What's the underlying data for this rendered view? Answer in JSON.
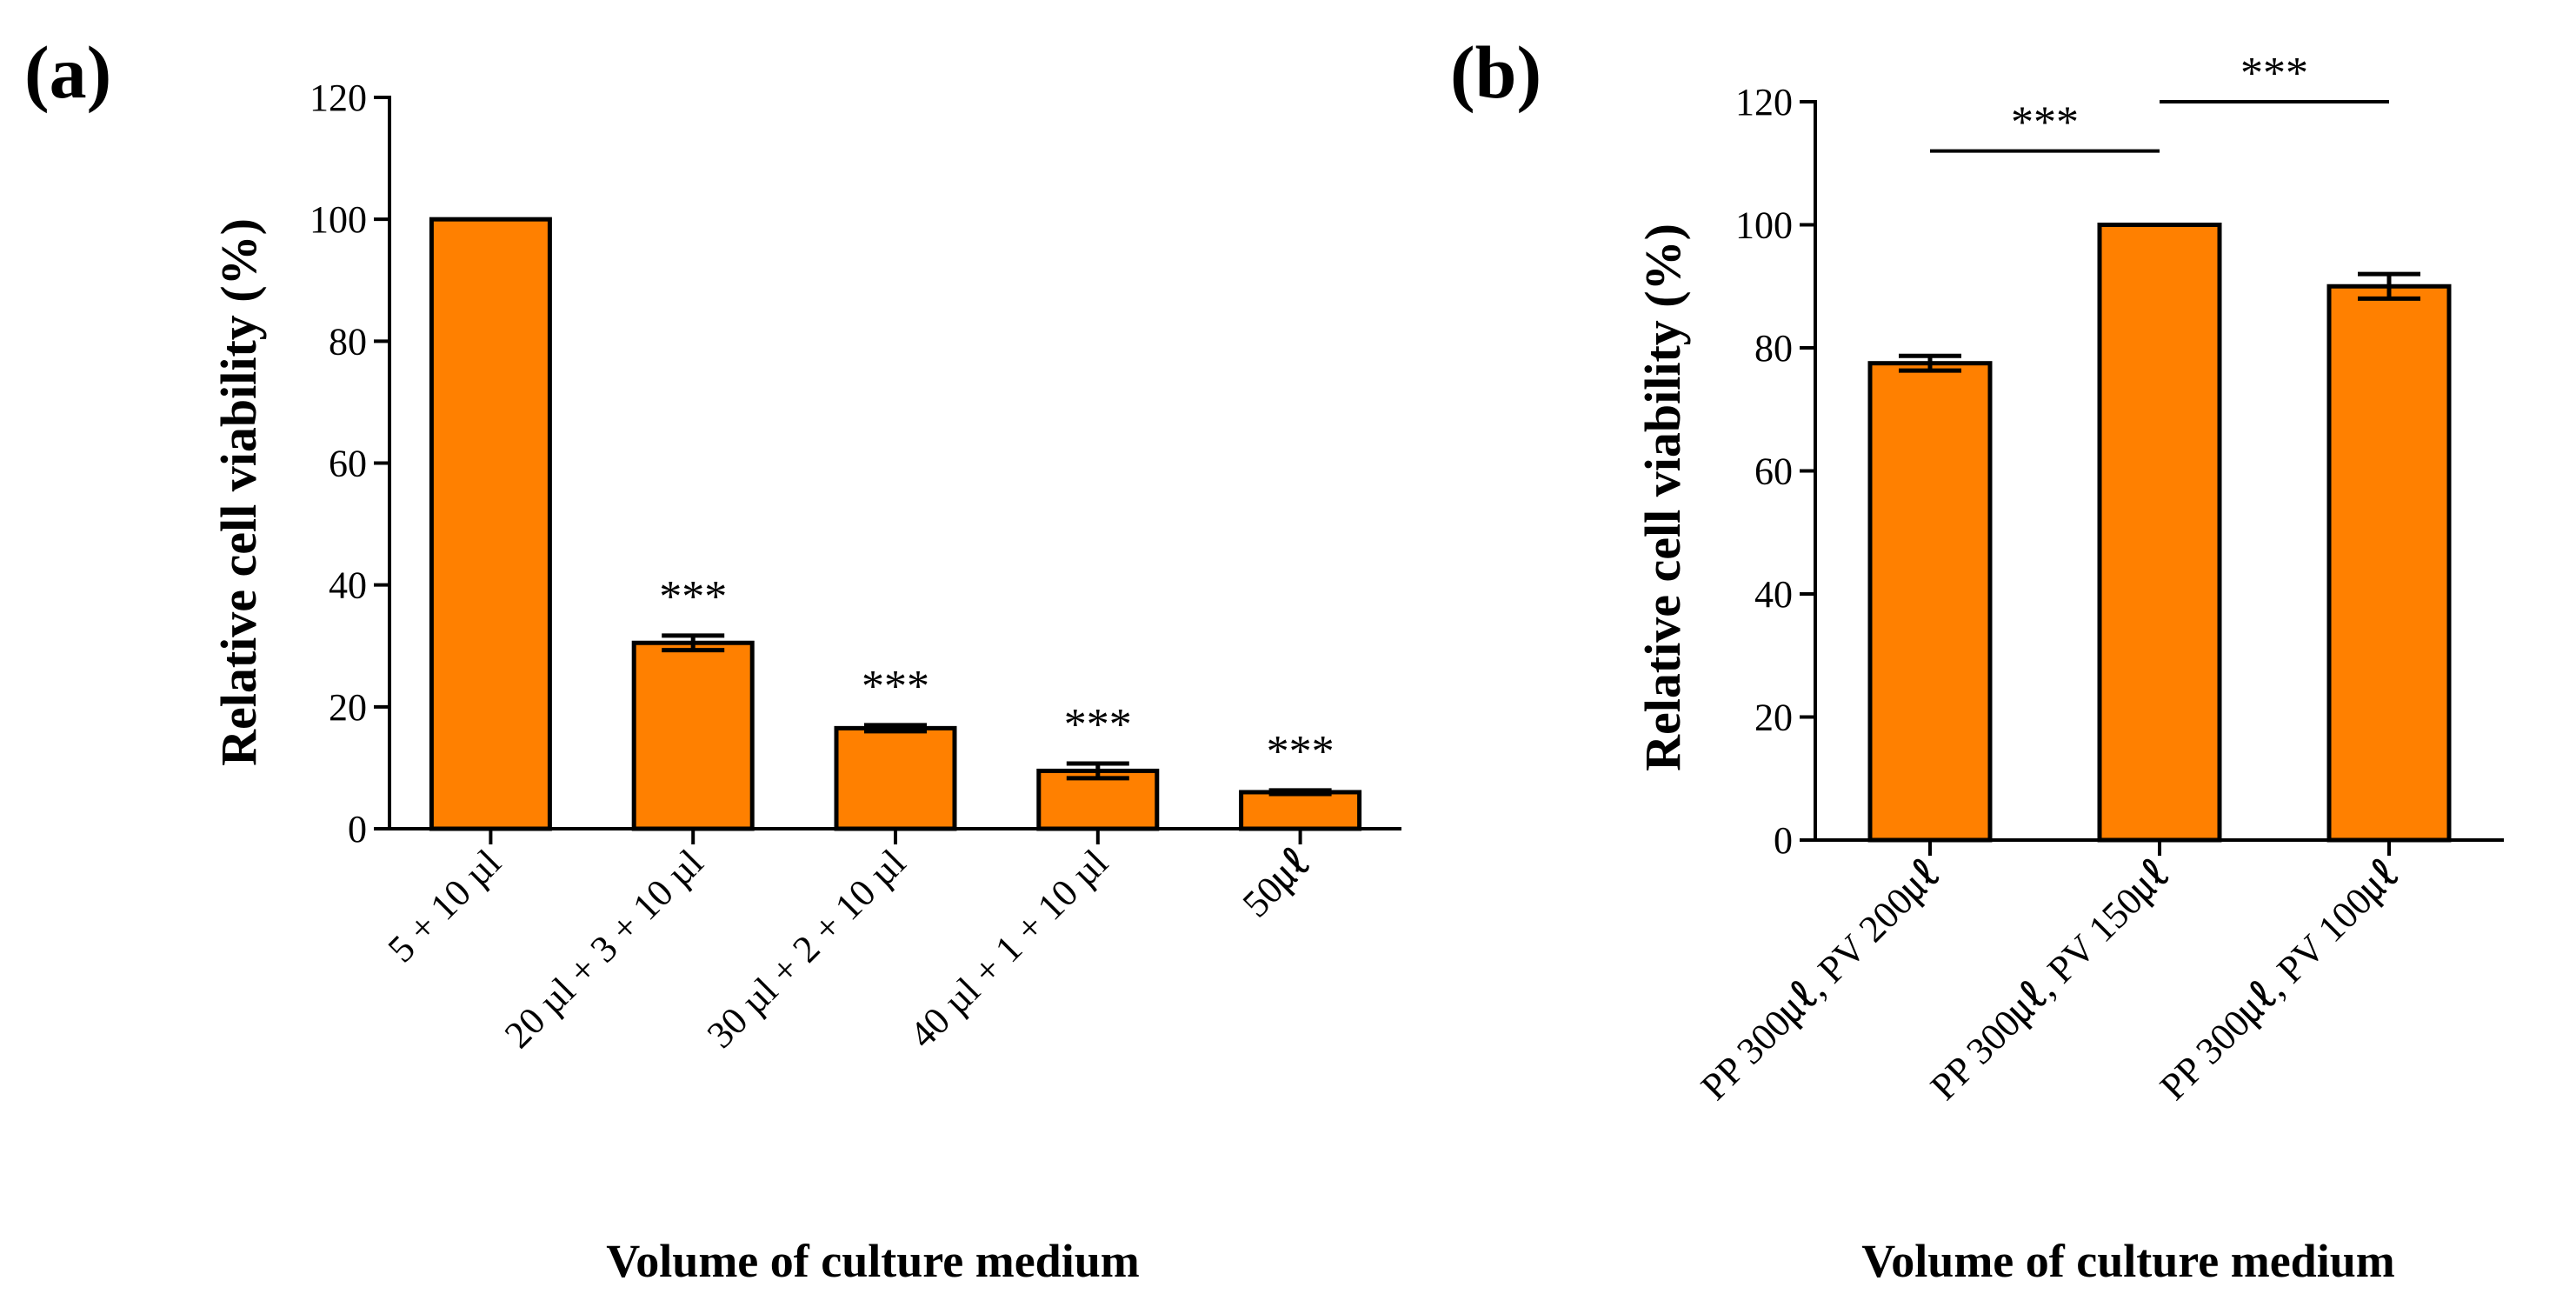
{
  "chart_data": [
    {
      "type": "bar",
      "panel_label": "(a)",
      "ylabel": "Relative cell viability (%)",
      "xlabel": "Volume of culture medium",
      "ylim": [
        0,
        120
      ],
      "yticks": [
        0,
        20,
        40,
        60,
        80,
        100,
        120
      ],
      "categories": [
        "5 + 10 µl",
        "20 µl + 3 + 10 µl",
        "30 µl + 2 + 10 µl",
        "40 µl + 1 + 10 µl",
        "50㎕"
      ],
      "values": [
        100,
        30.5,
        16.5,
        9.5,
        6
      ],
      "errors": [
        0,
        1.2,
        0.5,
        1.2,
        0.3
      ],
      "significance": [
        "",
        "***",
        "***",
        "***",
        "***"
      ],
      "bar_color": "#FF8000",
      "grid": false
    },
    {
      "type": "bar",
      "panel_label": "(b)",
      "ylabel": "Relative cell viability (%)",
      "xlabel": "Volume of culture medium",
      "ylim": [
        0,
        120
      ],
      "yticks": [
        0,
        20,
        40,
        60,
        80,
        100,
        120
      ],
      "categories": [
        "PP 300㎕, PV 200㎕",
        "PP 300㎕, PV 150㎕",
        "PP 300㎕, PV 100㎕"
      ],
      "values": [
        77.5,
        100,
        90
      ],
      "errors": [
        1.2,
        0,
        2
      ],
      "comparisons": [
        {
          "from": 0,
          "to": 1,
          "label": "***",
          "y": 112
        },
        {
          "from": 1,
          "to": 2,
          "label": "***",
          "y": 120
        }
      ],
      "bar_color": "#FF8000",
      "grid": false
    }
  ]
}
